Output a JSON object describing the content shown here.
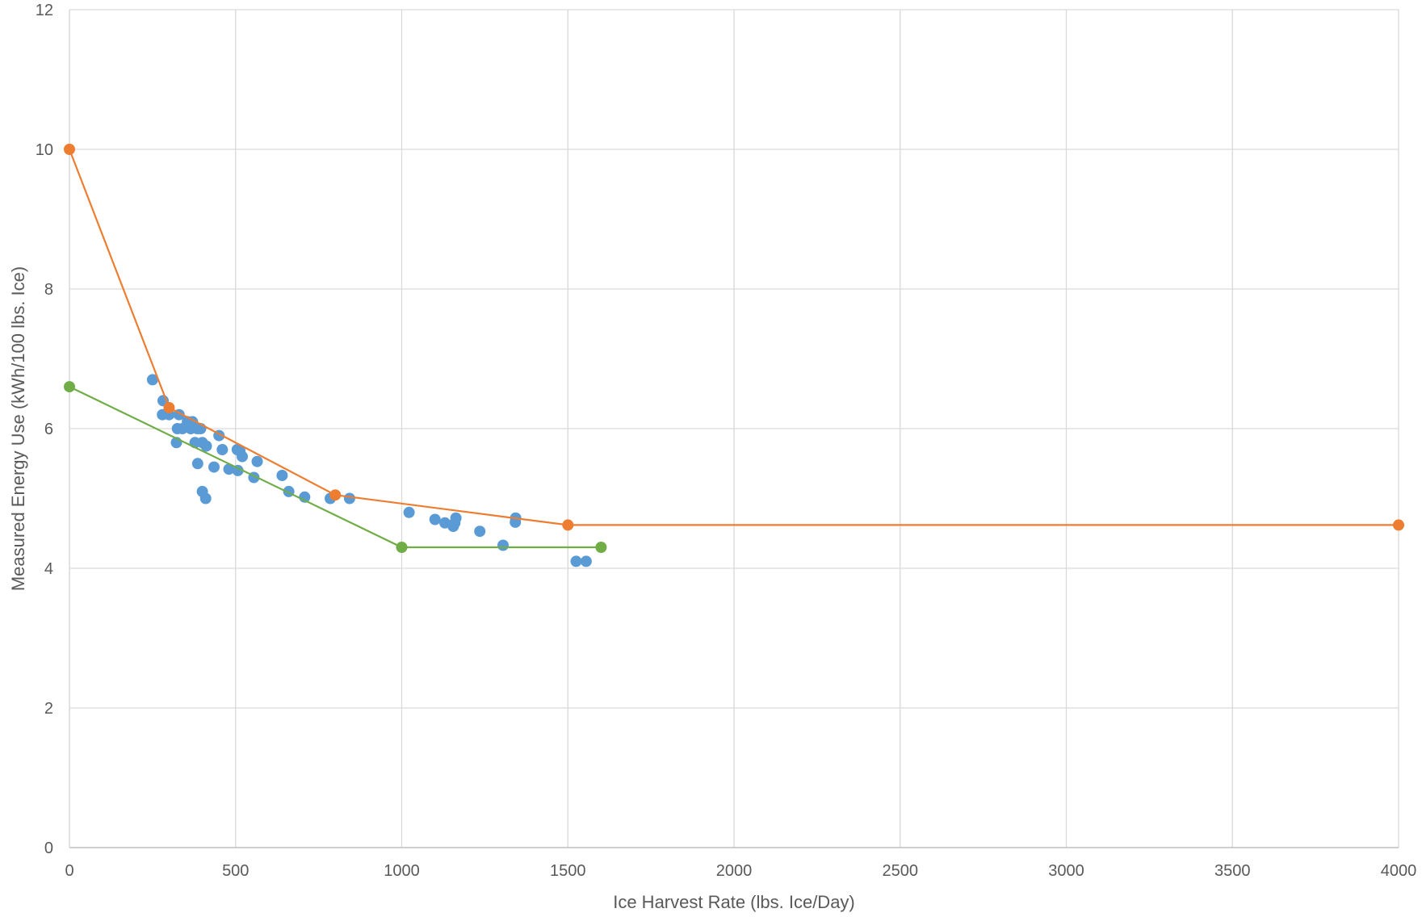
{
  "chart_data": {
    "type": "scatter",
    "title": "",
    "xlabel": "Ice Harvest Rate (lbs. Ice/Day)",
    "ylabel": "Measured Energy Use (kWh/100 lbs. Ice)",
    "xlim": [
      0,
      4000
    ],
    "ylim": [
      0,
      12
    ],
    "x_ticks": [
      "0",
      "500",
      "1000",
      "1500",
      "2000",
      "2500",
      "3000",
      "3500",
      "4000"
    ],
    "y_ticks": [
      "0",
      "2",
      "4",
      "6",
      "8",
      "10",
      "12"
    ],
    "grid": true,
    "legend": "none",
    "series": [
      {
        "mode": "markers",
        "color": "#5b9bd5",
        "points": [
          [
            250,
            6.7
          ],
          [
            282,
            6.4
          ],
          [
            280,
            6.2
          ],
          [
            300,
            6.2
          ],
          [
            322,
            5.8
          ],
          [
            325,
            6.0
          ],
          [
            330,
            6.2
          ],
          [
            340,
            6.0
          ],
          [
            355,
            6.1
          ],
          [
            365,
            6.0
          ],
          [
            370,
            6.1
          ],
          [
            378,
            5.8
          ],
          [
            385,
            6.0
          ],
          [
            386,
            5.5
          ],
          [
            400,
            5.8
          ],
          [
            395,
            6.0
          ],
          [
            400,
            5.1
          ],
          [
            410,
            5.0
          ],
          [
            412,
            5.75
          ],
          [
            435,
            5.45
          ],
          [
            450,
            5.9
          ],
          [
            460,
            5.7
          ],
          [
            480,
            5.42
          ],
          [
            505,
            5.7
          ],
          [
            507,
            5.4
          ],
          [
            513,
            5.68
          ],
          [
            520,
            5.6
          ],
          [
            555,
            5.3
          ],
          [
            565,
            5.53
          ],
          [
            640,
            5.33
          ],
          [
            660,
            5.1
          ],
          [
            708,
            5.02
          ],
          [
            785,
            5.0
          ],
          [
            843,
            5.0
          ],
          [
            1022,
            4.8
          ],
          [
            1100,
            4.7
          ],
          [
            1130,
            4.65
          ],
          [
            1155,
            4.6
          ],
          [
            1160,
            4.65
          ],
          [
            1163,
            4.72
          ],
          [
            1235,
            4.53
          ],
          [
            1305,
            4.33
          ],
          [
            1342,
            4.66
          ],
          [
            1343,
            4.72
          ],
          [
            1525,
            4.1
          ],
          [
            1555,
            4.1
          ]
        ]
      },
      {
        "mode": "lines+markers",
        "color": "#ed7d31",
        "points": [
          [
            0,
            10.0
          ],
          [
            300,
            6.3
          ],
          [
            800,
            5.05
          ],
          [
            1500,
            4.62
          ],
          [
            4000,
            4.62
          ]
        ]
      },
      {
        "mode": "lines+markers",
        "color": "#70ad47",
        "points": [
          [
            0,
            6.6
          ],
          [
            1000,
            4.3
          ],
          [
            1600,
            4.3
          ]
        ]
      }
    ]
  }
}
